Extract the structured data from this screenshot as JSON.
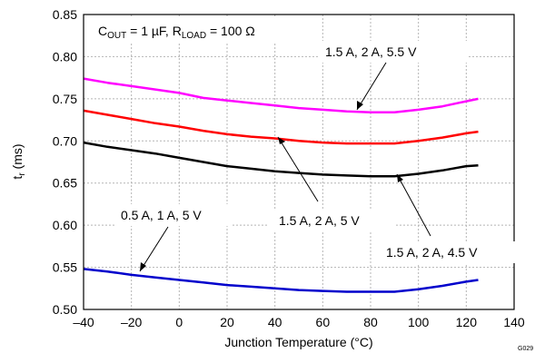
{
  "chart_data": {
    "type": "line",
    "xlabel": "Junction Temperature (°C)",
    "ylabel": "t",
    "ylabel_sub": "r",
    "ylabel_unit": " (ms)",
    "xlim": [
      -40,
      140
    ],
    "ylim": [
      0.5,
      0.85
    ],
    "x_ticks": [
      -40,
      -20,
      0,
      20,
      40,
      60,
      80,
      100,
      120,
      140
    ],
    "x_tick_labels": [
      "–40",
      "–20",
      "0",
      "20",
      "40",
      "60",
      "80",
      "100",
      "120",
      "140"
    ],
    "y_ticks": [
      0.5,
      0.55,
      0.6,
      0.65,
      0.7,
      0.75,
      0.8,
      0.85
    ],
    "y_tick_labels": [
      "0.50",
      "0.55",
      "0.60",
      "0.65",
      "0.70",
      "0.75",
      "0.80",
      "0.85"
    ],
    "grid": true,
    "condition": {
      "c": "C",
      "c_sub": "OUT",
      "c_val": " = 1 µF, ",
      "r": "R",
      "r_sub": "LOAD",
      "r_val": " = 100 Ω"
    },
    "series": [
      {
        "name": "1.5 A, 2 A, 5.5 V",
        "color": "#ff00ff",
        "x": [
          -40,
          -30,
          -20,
          -10,
          0,
          10,
          20,
          30,
          40,
          50,
          60,
          70,
          80,
          90,
          100,
          110,
          120,
          125
        ],
        "y": [
          0.774,
          0.769,
          0.765,
          0.761,
          0.757,
          0.751,
          0.748,
          0.745,
          0.742,
          0.739,
          0.737,
          0.735,
          0.734,
          0.734,
          0.737,
          0.741,
          0.747,
          0.75
        ]
      },
      {
        "name": "1.5 A, 2 A, 5 V",
        "color": "#ff0000",
        "x": [
          -40,
          -30,
          -20,
          -10,
          0,
          10,
          20,
          30,
          40,
          50,
          60,
          70,
          80,
          90,
          100,
          110,
          120,
          125
        ],
        "y": [
          0.736,
          0.731,
          0.726,
          0.721,
          0.717,
          0.712,
          0.708,
          0.705,
          0.703,
          0.7,
          0.698,
          0.697,
          0.697,
          0.697,
          0.7,
          0.704,
          0.709,
          0.711
        ]
      },
      {
        "name": "1.5 A, 2 A, 4.5 V",
        "color": "#000000",
        "x": [
          -40,
          -30,
          -20,
          -10,
          0,
          10,
          20,
          30,
          40,
          50,
          60,
          70,
          80,
          90,
          100,
          110,
          120,
          125
        ],
        "y": [
          0.698,
          0.693,
          0.689,
          0.685,
          0.68,
          0.675,
          0.67,
          0.667,
          0.664,
          0.662,
          0.66,
          0.659,
          0.658,
          0.658,
          0.661,
          0.665,
          0.67,
          0.671
        ]
      },
      {
        "name": "0.5 A, 1 A, 5 V",
        "color": "#0000cc",
        "x": [
          -40,
          -30,
          -20,
          -10,
          0,
          10,
          20,
          30,
          40,
          50,
          60,
          70,
          80,
          90,
          100,
          110,
          120,
          125
        ],
        "y": [
          0.548,
          0.545,
          0.541,
          0.538,
          0.535,
          0.532,
          0.529,
          0.527,
          0.525,
          0.523,
          0.522,
          0.521,
          0.521,
          0.521,
          0.524,
          0.528,
          0.533,
          0.535
        ]
      }
    ],
    "annotations": [
      {
        "text": "1.5 A, 2 A, 5.5 V",
        "series": 0
      },
      {
        "text": "1.5 A, 2 A, 5 V",
        "series": 1
      },
      {
        "text": "1.5 A, 2 A, 4.5 V",
        "series": 2
      },
      {
        "text": "0.5 A, 1 A, 5 V",
        "series": 3
      }
    ],
    "footnote": "G029"
  }
}
